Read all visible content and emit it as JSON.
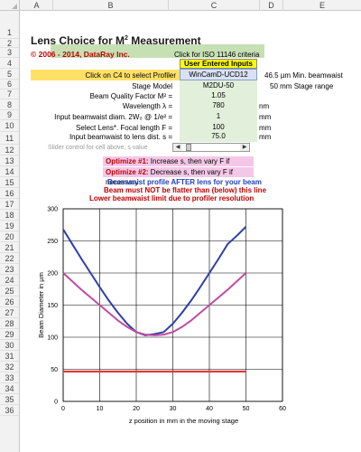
{
  "columns": [
    "A",
    "B",
    "C",
    "D",
    "E"
  ],
  "rows": [
    "1",
    "2",
    "3",
    "4",
    "5",
    "6",
    "7",
    "8",
    "9",
    "10",
    "11",
    "12",
    "13",
    "14",
    "15",
    "16",
    "17",
    "18",
    "19",
    "20",
    "21",
    "22",
    "23",
    "24",
    "25",
    "26",
    "27",
    "28",
    "29",
    "30",
    "31",
    "32",
    "33",
    "34",
    "35",
    "36"
  ],
  "title_text": "Lens Choice for M",
  "title_sup": "2",
  "title_tail": " Measurement",
  "copyright": "© 2006 - 2014, DataRay Inc.",
  "iso_label": "Click for ISO 11146 criteria",
  "user_inputs_label": "User Entered Inputs",
  "click_label": "Click on C4 to select Profiler",
  "profiler_value": "WinCamD-UCD12",
  "min_beamwaist": "46.5",
  "min_beamwaist_unit": "µm Min. beamwaist",
  "stage_range": "50",
  "stage_range_unit": "mm Stage range",
  "fields": [
    {
      "label": "Stage Model",
      "value": "M2DU-50",
      "unit": ""
    },
    {
      "label": "Beam Quality Factor  M² =",
      "value": "1.05",
      "unit": ""
    },
    {
      "label": "Wavelength  λ =",
      "value": "780",
      "unit": "nm"
    },
    {
      "label": "Input beamwaist diam.  2W₀ @ 1/e² =",
      "value": "1",
      "unit": "mm"
    },
    {
      "label": "Select Lens*. Focal length  F =",
      "value": "100",
      "unit": "mm"
    },
    {
      "label": "Input beamwaist to lens dist.  s =",
      "value": "75.0",
      "unit": "mm"
    }
  ],
  "slider_label": "Slider control for cell above, s value",
  "optimize1_tag": "Optimize #1:",
  "optimize1_text": " Increase s, then vary F if necessary",
  "optimize2_tag": "Optimize #2:",
  "optimize2_text": " Decrease s, then vary F if necessary",
  "note_blue": "Beamwaist profile AFTER lens for your beam",
  "note_red1": "Beam must NOT be flatter than (below) this line",
  "note_red2": "Lower beamwaist limit due to profiler resolution",
  "colors": {
    "title_bg": "#c6e0b4",
    "user_inputs_bg": "#ffff00",
    "profiler_bg": "#d9e1f2",
    "value_bg": "#e2efda",
    "optimize_bg": "#f4c7e8",
    "series_blue": "#2e3ea8",
    "series_magenta": "#c14aa0",
    "series_red": "#e03a3a"
  },
  "chart_data": {
    "type": "line",
    "xlabel": "z position in mm in the moving stage",
    "ylabel": "Beam Diameter in µm",
    "xlim": [
      0,
      60
    ],
    "ylim": [
      0,
      300
    ],
    "xticks": [
      0,
      10,
      20,
      30,
      40,
      50,
      60
    ],
    "yticks": [
      0,
      50,
      100,
      150,
      200,
      250,
      300
    ],
    "grid": true,
    "series": [
      {
        "color": "#2e3ea8",
        "x": [
          0,
          2.5,
          5,
          7.5,
          10,
          12.5,
          15,
          17.5,
          20,
          22.5,
          25,
          27.5,
          30,
          32.5,
          35,
          37.5,
          40,
          42.5,
          45,
          47.5,
          50
        ],
        "values": [
          268,
          245,
          222,
          200,
          178,
          157,
          138,
          121,
          108,
          103,
          105,
          108,
          121,
          138,
          157,
          178,
          200,
          222,
          245,
          258,
          272
        ]
      },
      {
        "color": "#c14aa0",
        "x": [
          0,
          2.5,
          5,
          7.5,
          10,
          12.5,
          15,
          17.5,
          20,
          22.5,
          25,
          27.5,
          30,
          32.5,
          35,
          37.5,
          40,
          42.5,
          45,
          47.5,
          50
        ],
        "values": [
          200,
          187,
          174,
          162,
          150,
          138,
          126,
          116,
          108,
          104,
          103,
          104,
          108,
          116,
          126,
          138,
          150,
          162,
          174,
          187,
          200
        ]
      },
      {
        "color": "#e03a3a",
        "x": [
          0,
          50
        ],
        "values": [
          46.5,
          46.5
        ]
      }
    ]
  }
}
